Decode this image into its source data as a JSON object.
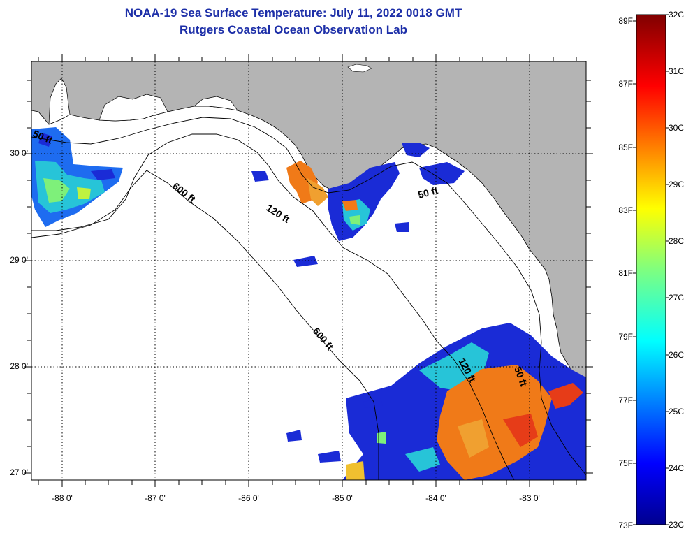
{
  "header": {
    "title": "NOAA-19 Sea Surface Temperature:  July 11, 2022 0018 GMT",
    "subtitle": "Rutgers Coastal Ocean Observation Lab"
  },
  "map": {
    "lat_labels": [
      "30 0'",
      "29 0'",
      "28 0'",
      "27 0'"
    ],
    "lon_labels": [
      "-88 0'",
      "-87 0'",
      "-86 0'",
      "-85 0'",
      "-84 0'",
      "-83 0'"
    ],
    "contours": {
      "c50_west": "50 ft",
      "c50_east": "50 ft",
      "c50_south": "50 ft",
      "c120_north": "120 ft",
      "c120_south": "120 ft",
      "c600_north": "600 ft",
      "c600_south": "600 ft"
    },
    "colors": {
      "land": "#b4b4b4",
      "water": "#ffffff",
      "grid": "#000000"
    }
  },
  "colorbar": {
    "fahrenheit": [
      "89F",
      "87F",
      "85F",
      "83F",
      "81F",
      "79F",
      "77F",
      "75F",
      "73F"
    ],
    "celsius": [
      "32C",
      "31C",
      "30C",
      "29C",
      "28C",
      "27C",
      "26C",
      "25C",
      "24C",
      "23C"
    ],
    "range_c": [
      23,
      32
    ],
    "range_f": [
      73,
      89
    ]
  }
}
